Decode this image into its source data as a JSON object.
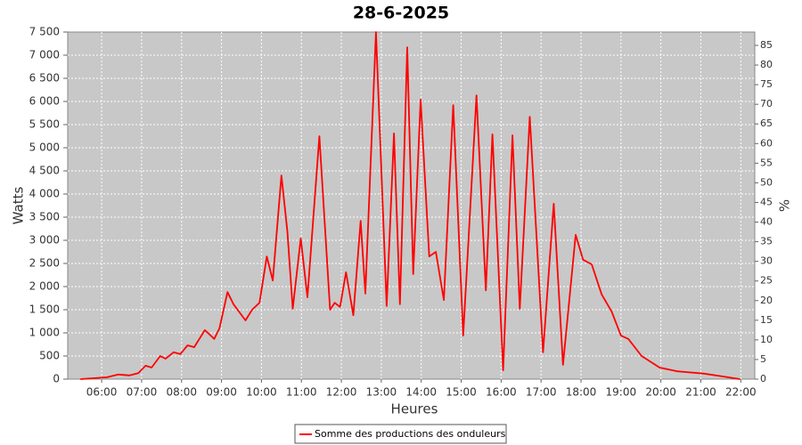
{
  "chart_data": {
    "type": "line",
    "title": "28-6-2025",
    "xlabel": "Heures",
    "ylabel": "Watts",
    "y2label": "%",
    "x": [
      "05:28",
      "06:08",
      "06:25",
      "06:42",
      "06:55",
      "07:06",
      "07:15",
      "07:28",
      "07:36",
      "07:48",
      "07:58",
      "08:09",
      "08:19",
      "08:35",
      "08:49",
      "08:57",
      "09:09",
      "09:18",
      "09:36",
      "09:46",
      "09:57",
      "10:08",
      "10:17",
      "10:30",
      "10:39",
      "10:47",
      "10:59",
      "11:09",
      "11:27",
      "11:43",
      "11:50",
      "11:58",
      "12:07",
      "12:18",
      "12:29",
      "12:36",
      "12:52",
      "13:08",
      "13:19",
      "13:28",
      "13:39",
      "13:48",
      "13:59",
      "14:12",
      "14:22",
      "14:34",
      "14:48",
      "15:03",
      "15:23",
      "15:37",
      "15:47",
      "16:03",
      "16:17",
      "16:28",
      "16:43",
      "17:03",
      "17:19",
      "17:33",
      "17:52",
      "18:03",
      "18:16",
      "18:31",
      "18:46",
      "19:00",
      "19:11",
      "19:31",
      "19:58",
      "20:25",
      "21:05",
      "21:32",
      "21:59"
    ],
    "series": [
      {
        "name": "Somme des productions des onduleurs",
        "color": "#ff0000",
        "values": [
          0,
          40,
          100,
          80,
          130,
          290,
          250,
          500,
          440,
          580,
          540,
          730,
          690,
          1060,
          870,
          1100,
          1880,
          1620,
          1270,
          1500,
          1650,
          2650,
          2130,
          4400,
          3190,
          1520,
          3040,
          1770,
          5250,
          1500,
          1650,
          1560,
          2310,
          1380,
          3420,
          1850,
          7500,
          1580,
          5310,
          1620,
          7170,
          2270,
          6040,
          2650,
          2750,
          1710,
          5920,
          940,
          6130,
          1920,
          5290,
          190,
          5270,
          1520,
          5670,
          580,
          3790,
          310,
          3120,
          2580,
          2480,
          1830,
          1460,
          940,
          870,
          500,
          250,
          170,
          120,
          60,
          0
        ]
      }
    ],
    "xlim": [
      "05:09",
      "22:21"
    ],
    "xticks": [
      "06:00",
      "07:00",
      "08:00",
      "09:00",
      "10:00",
      "11:00",
      "12:00",
      "13:00",
      "14:00",
      "15:00",
      "16:00",
      "17:00",
      "18:00",
      "19:00",
      "20:00",
      "21:00",
      "22:00"
    ],
    "ylim": [
      0,
      7500
    ],
    "yticks": [
      0,
      500,
      {
        "value": 1000,
        "label": "1 000"
      },
      {
        "value": 1500,
        "label": "1 500"
      },
      {
        "value": 2000,
        "label": "2 000"
      },
      {
        "value": 2500,
        "label": "2 500"
      },
      {
        "value": 3000,
        "label": "3 000"
      },
      {
        "value": 3500,
        "label": "3 500"
      },
      {
        "value": 4000,
        "label": "4 000"
      },
      {
        "value": 4500,
        "label": "4 500"
      },
      {
        "value": 5000,
        "label": "5 000"
      },
      {
        "value": 5500,
        "label": "5 500"
      },
      {
        "value": 6000,
        "label": "6 000"
      },
      {
        "value": 6500,
        "label": "6 500"
      },
      {
        "value": 7000,
        "label": "7 000"
      },
      {
        "value": 7500,
        "label": "7 500"
      }
    ],
    "y2lim": [
      0,
      88.4
    ],
    "y2ticks": [
      0,
      5,
      10,
      15,
      20,
      25,
      30,
      35,
      40,
      45,
      50,
      55,
      60,
      65,
      70,
      75,
      80,
      85
    ],
    "grid": true,
    "legend": "bottom"
  }
}
